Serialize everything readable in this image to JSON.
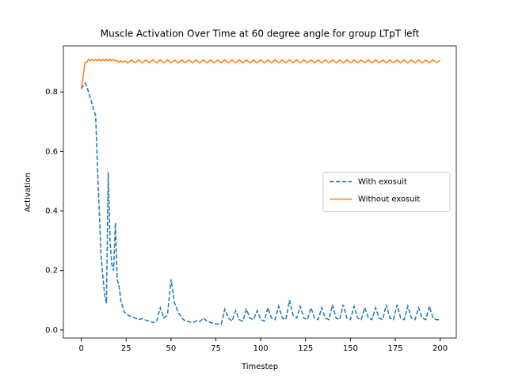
{
  "chart_data": {
    "type": "line",
    "title": "Muscle Activation Over Time at 60 degree angle for group LTpT left",
    "x_label": "Timestep",
    "y_label": "Activation",
    "xlim": [
      -10,
      209
    ],
    "ylim": [
      -0.027,
      0.955
    ],
    "xticks": [
      0,
      25,
      50,
      75,
      100,
      125,
      150,
      175,
      200
    ],
    "yticks": [
      {
        "value": 0,
        "label": "0.0"
      },
      0.2,
      0.4,
      0.6,
      0.8
    ],
    "legend": "center right",
    "grid": false,
    "x": [
      0,
      1,
      2,
      3,
      4,
      5,
      6,
      7,
      8,
      9,
      10,
      11,
      12,
      13,
      14,
      15,
      16,
      17,
      18,
      19,
      20,
      21,
      22,
      23,
      24,
      26,
      28,
      30,
      32,
      34,
      36,
      38,
      40,
      42,
      44,
      46,
      48,
      50,
      52,
      54,
      56,
      58,
      60,
      62,
      64,
      66,
      68,
      70,
      72,
      74,
      76,
      78,
      80,
      82,
      84,
      86,
      88,
      90,
      92,
      94,
      96,
      98,
      100,
      102,
      104,
      106,
      108,
      110,
      112,
      114,
      116,
      118,
      120,
      122,
      124,
      126,
      128,
      130,
      132,
      134,
      136,
      138,
      140,
      142,
      144,
      146,
      148,
      150,
      152,
      154,
      156,
      158,
      160,
      162,
      164,
      166,
      168,
      170,
      172,
      174,
      176,
      178,
      180,
      182,
      184,
      186,
      188,
      190,
      192,
      194,
      196,
      198,
      200
    ],
    "series": [
      {
        "name": "With exosuit",
        "color": "#1f77b4",
        "linestyle": "dashed",
        "values": [
          0.81,
          0.82,
          0.83,
          0.82,
          0.8,
          0.78,
          0.76,
          0.74,
          0.72,
          0.55,
          0.4,
          0.25,
          0.18,
          0.12,
          0.09,
          0.53,
          0.3,
          0.22,
          0.2,
          0.36,
          0.17,
          0.15,
          0.1,
          0.08,
          0.06,
          0.05,
          0.045,
          0.04,
          0.035,
          0.038,
          0.033,
          0.03,
          0.025,
          0.03,
          0.075,
          0.04,
          0.05,
          0.17,
          0.09,
          0.06,
          0.04,
          0.03,
          0.028,
          0.025,
          0.03,
          0.028,
          0.04,
          0.03,
          0.025,
          0.022,
          0.02,
          0.02,
          0.07,
          0.04,
          0.03,
          0.065,
          0.035,
          0.03,
          0.07,
          0.04,
          0.035,
          0.065,
          0.035,
          0.03,
          0.075,
          0.04,
          0.035,
          0.08,
          0.04,
          0.035,
          0.1,
          0.05,
          0.04,
          0.08,
          0.04,
          0.035,
          0.075,
          0.04,
          0.035,
          0.075,
          0.04,
          0.035,
          0.085,
          0.04,
          0.035,
          0.085,
          0.04,
          0.035,
          0.08,
          0.04,
          0.035,
          0.075,
          0.04,
          0.035,
          0.075,
          0.04,
          0.035,
          0.085,
          0.04,
          0.035,
          0.085,
          0.04,
          0.035,
          0.08,
          0.04,
          0.035,
          0.075,
          0.04,
          0.035,
          0.08,
          0.04,
          0.035,
          0.035
        ]
      },
      {
        "name": "Without exosuit",
        "color": "#ff7f0e",
        "linestyle": "solid",
        "values": [
          0.81,
          0.85,
          0.9,
          0.9,
          0.91,
          0.905,
          0.91,
          0.905,
          0.91,
          0.905,
          0.91,
          0.905,
          0.91,
          0.905,
          0.91,
          0.905,
          0.91,
          0.905,
          0.91,
          0.905,
          0.905,
          0.9,
          0.905,
          0.9,
          0.905,
          0.898,
          0.908,
          0.898,
          0.908,
          0.898,
          0.908,
          0.898,
          0.908,
          0.898,
          0.908,
          0.898,
          0.908,
          0.898,
          0.908,
          0.898,
          0.908,
          0.898,
          0.908,
          0.898,
          0.908,
          0.898,
          0.908,
          0.898,
          0.908,
          0.898,
          0.908,
          0.898,
          0.908,
          0.898,
          0.908,
          0.898,
          0.908,
          0.898,
          0.908,
          0.898,
          0.908,
          0.898,
          0.908,
          0.898,
          0.908,
          0.898,
          0.908,
          0.898,
          0.908,
          0.898,
          0.908,
          0.898,
          0.908,
          0.898,
          0.908,
          0.898,
          0.908,
          0.898,
          0.908,
          0.898,
          0.908,
          0.898,
          0.908,
          0.898,
          0.908,
          0.898,
          0.908,
          0.898,
          0.908,
          0.898,
          0.908,
          0.898,
          0.908,
          0.898,
          0.908,
          0.898,
          0.908,
          0.898,
          0.908,
          0.898,
          0.908,
          0.898,
          0.908,
          0.898,
          0.908,
          0.898,
          0.908,
          0.898,
          0.908,
          0.898,
          0.908,
          0.898,
          0.908
        ]
      }
    ]
  }
}
